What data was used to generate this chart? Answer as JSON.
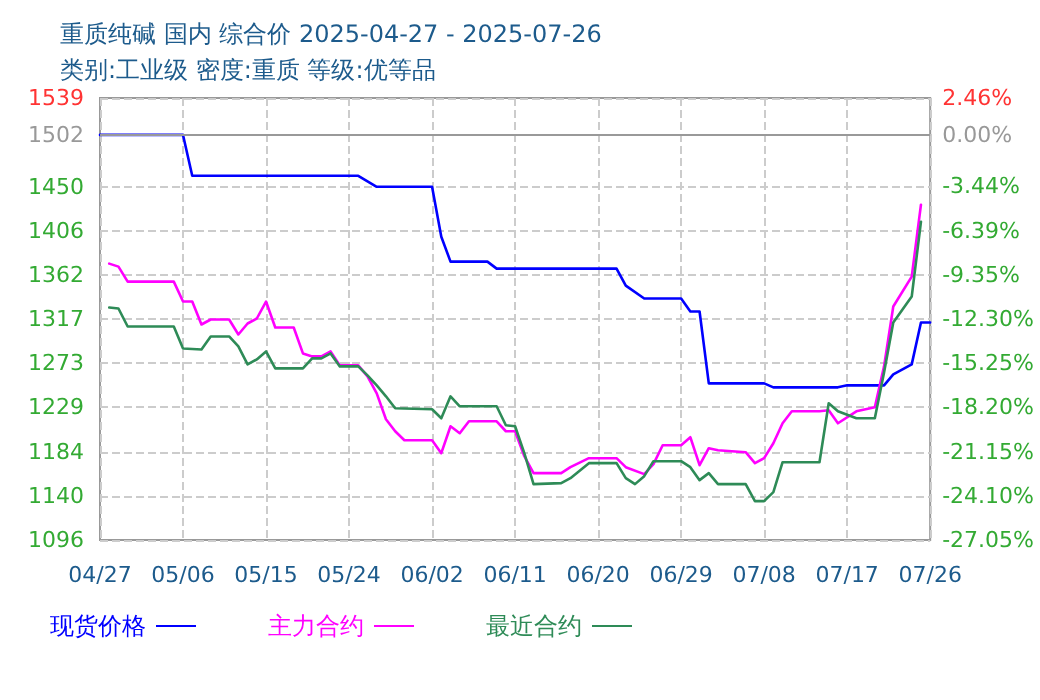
{
  "chart_data": {
    "type": "line",
    "title": "重质纯碱 国内 综合价 2025-04-27 - 2025-07-26",
    "subtitle": "类别:工业级 密度:重质 等级:优等品",
    "xlim": [
      "2025-04-27",
      "2025-07-26"
    ],
    "xticks": [
      {
        "value": "2025-04-27",
        "label": "04/27"
      },
      {
        "value": "2025-05-06",
        "label": "05/06"
      },
      {
        "value": "2025-05-15",
        "label": "05/15"
      },
      {
        "value": "2025-05-24",
        "label": "05/24"
      },
      {
        "value": "2025-06-02",
        "label": "06/02"
      },
      {
        "value": "2025-06-11",
        "label": "06/11"
      },
      {
        "value": "2025-06-20",
        "label": "06/20"
      },
      {
        "value": "2025-06-29",
        "label": "06/29"
      },
      {
        "value": "2025-07-08",
        "label": "07/08"
      },
      {
        "value": "2025-07-17",
        "label": "07/17"
      },
      {
        "value": "2025-07-26",
        "label": "07/26"
      }
    ],
    "ylim": [
      1096,
      1539
    ],
    "yticks": [
      1096,
      1140,
      1184,
      1229,
      1273,
      1317,
      1362,
      1406,
      1450,
      1502,
      1539
    ],
    "y2lim": [
      -27.05,
      2.46
    ],
    "y2ticks": [
      {
        "value": -27.05,
        "label": "-27.05%"
      },
      {
        "value": -24.1,
        "label": "-24.10%"
      },
      {
        "value": -21.15,
        "label": "-21.15%"
      },
      {
        "value": -18.2,
        "label": "-18.20%"
      },
      {
        "value": -15.25,
        "label": "-15.25%"
      },
      {
        "value": -12.3,
        "label": "-12.30%"
      },
      {
        "value": -9.35,
        "label": "-9.35%"
      },
      {
        "value": -6.39,
        "label": "-6.39%"
      },
      {
        "value": -3.44,
        "label": "-3.44%"
      },
      {
        "value": 0,
        "label": "0.00%"
      },
      {
        "value": 2.46,
        "label": "2.46%"
      }
    ],
    "ref_lines": [
      {
        "axis": "y2",
        "value": 0,
        "color": "#999999",
        "line_style": "solid"
      }
    ],
    "grid": true,
    "legend": "bottom left",
    "marker": "none",
    "line_style": "solid",
    "series": [
      {
        "name": "现货价格",
        "color": "#0000ff",
        "x": [
          "2025-04-27",
          "2025-05-06",
          "2025-05-07",
          "2025-05-25",
          "2025-05-27",
          "2025-06-02",
          "2025-06-03",
          "2025-06-04",
          "2025-06-08",
          "2025-06-09",
          "2025-06-22",
          "2025-06-23",
          "2025-06-25",
          "2025-06-29",
          "2025-06-30",
          "2025-07-01",
          "2025-07-02",
          "2025-07-08",
          "2025-07-09",
          "2025-07-16",
          "2025-07-17",
          "2025-07-21",
          "2025-07-22",
          "2025-07-24",
          "2025-07-25",
          "2025-07-26"
        ],
        "values": [
          1502,
          1502,
          1461,
          1461,
          1450,
          1450,
          1400,
          1375,
          1375,
          1368,
          1368,
          1351,
          1338,
          1338,
          1325,
          1325,
          1253,
          1253,
          1249,
          1249,
          1251,
          1251,
          1262,
          1272,
          1314,
          1314
        ]
      },
      {
        "name": "主力合约",
        "color": "#ff00ff",
        "x": [
          "2025-04-28",
          "2025-04-29",
          "2025-04-30",
          "2025-05-05",
          "2025-05-06",
          "2025-05-07",
          "2025-05-08",
          "2025-05-09",
          "2025-05-11",
          "2025-05-12",
          "2025-05-13",
          "2025-05-14",
          "2025-05-15",
          "2025-05-16",
          "2025-05-18",
          "2025-05-19",
          "2025-05-20",
          "2025-05-21",
          "2025-05-22",
          "2025-05-23",
          "2025-05-25",
          "2025-05-26",
          "2025-05-27",
          "2025-05-28",
          "2025-05-29",
          "2025-05-30",
          "2025-06-02",
          "2025-06-03",
          "2025-06-04",
          "2025-06-05",
          "2025-06-06",
          "2025-06-09",
          "2025-06-10",
          "2025-06-11",
          "2025-06-12",
          "2025-06-13",
          "2025-06-16",
          "2025-06-17",
          "2025-06-19",
          "2025-06-22",
          "2025-06-23",
          "2025-06-25",
          "2025-06-26",
          "2025-06-27",
          "2025-06-29",
          "2025-06-30",
          "2025-07-01",
          "2025-07-02",
          "2025-07-03",
          "2025-07-06",
          "2025-07-07",
          "2025-07-08",
          "2025-07-09",
          "2025-07-10",
          "2025-07-11",
          "2025-07-14",
          "2025-07-15",
          "2025-07-16",
          "2025-07-18",
          "2025-07-20",
          "2025-07-21",
          "2025-07-22",
          "2025-07-24",
          "2025-07-25"
        ],
        "values": [
          1373,
          1370,
          1355,
          1355,
          1335,
          1335,
          1312,
          1317,
          1317,
          1302,
          1313,
          1318,
          1335,
          1309,
          1309,
          1283,
          1280,
          1280,
          1285,
          1271,
          1271,
          1260,
          1243,
          1217,
          1205,
          1196,
          1196,
          1183,
          1210,
          1203,
          1215,
          1215,
          1205,
          1205,
          1180,
          1163,
          1163,
          1169,
          1178,
          1178,
          1169,
          1162,
          1172,
          1191,
          1191,
          1199,
          1171,
          1188,
          1186,
          1184,
          1173,
          1178,
          1193,
          1213,
          1225,
          1225,
          1226,
          1213,
          1225,
          1229,
          1270,
          1330,
          1360,
          1432
        ]
      },
      {
        "name": "最近合约",
        "color": "#2e8b57",
        "x": [
          "2025-04-28",
          "2025-04-29",
          "2025-04-30",
          "2025-05-05",
          "2025-05-06",
          "2025-05-08",
          "2025-05-09",
          "2025-05-11",
          "2025-05-12",
          "2025-05-13",
          "2025-05-14",
          "2025-05-15",
          "2025-05-16",
          "2025-05-19",
          "2025-05-20",
          "2025-05-21",
          "2025-05-22",
          "2025-05-23",
          "2025-05-25",
          "2025-05-26",
          "2025-05-27",
          "2025-05-28",
          "2025-05-29",
          "2025-06-02",
          "2025-06-03",
          "2025-06-04",
          "2025-06-05",
          "2025-06-09",
          "2025-06-10",
          "2025-06-11",
          "2025-06-12",
          "2025-06-13",
          "2025-06-16",
          "2025-06-17",
          "2025-06-19",
          "2025-06-22",
          "2025-06-23",
          "2025-06-24",
          "2025-06-25",
          "2025-06-26",
          "2025-06-29",
          "2025-06-30",
          "2025-07-01",
          "2025-07-02",
          "2025-07-03",
          "2025-07-06",
          "2025-07-07",
          "2025-07-08",
          "2025-07-09",
          "2025-07-10",
          "2025-07-14",
          "2025-07-15",
          "2025-07-16",
          "2025-07-18",
          "2025-07-20",
          "2025-07-21",
          "2025-07-22",
          "2025-07-24",
          "2025-07-25"
        ],
        "values": [
          1329,
          1328,
          1310,
          1310,
          1288,
          1287,
          1300,
          1300,
          1290,
          1272,
          1277,
          1285,
          1268,
          1268,
          1278,
          1278,
          1283,
          1270,
          1270,
          1261,
          1251,
          1240,
          1228,
          1227,
          1218,
          1240,
          1230,
          1230,
          1211,
          1210,
          1183,
          1152,
          1153,
          1158,
          1173,
          1173,
          1158,
          1152,
          1160,
          1175,
          1175,
          1169,
          1156,
          1163,
          1152,
          1152,
          1135,
          1135,
          1144,
          1174,
          1174,
          1233,
          1225,
          1218,
          1218,
          1264,
          1314,
          1340,
          1415
        ]
      }
    ]
  }
}
